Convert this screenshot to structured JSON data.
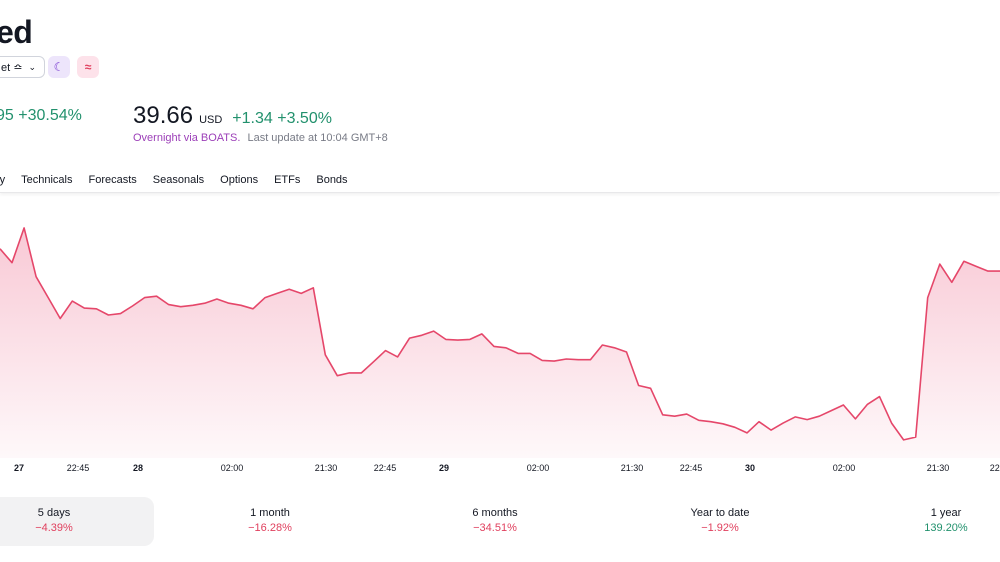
{
  "header": {
    "title": "ed",
    "market_select": "et ≏",
    "main_change": "95 +30.54%"
  },
  "quote": {
    "price": "39.66",
    "currency": "USD",
    "change": "+1.34 +3.50%",
    "session": "Overnight via BOATS.",
    "last_update": "Last update at 10:04 GMT+8"
  },
  "tabs": [
    "nity",
    "Technicals",
    "Forecasts",
    "Seasonals",
    "Options",
    "ETFs",
    "Bonds"
  ],
  "x_axis_labels": [
    {
      "text": "27",
      "bold": true
    },
    {
      "text": "22:45",
      "bold": false
    },
    {
      "text": "28",
      "bold": true
    },
    {
      "text": "02:00",
      "bold": false
    },
    {
      "text": "21:30",
      "bold": false
    },
    {
      "text": "22:45",
      "bold": false
    },
    {
      "text": "29",
      "bold": true
    },
    {
      "text": "02:00",
      "bold": false
    },
    {
      "text": "21:30",
      "bold": false
    },
    {
      "text": "22:45",
      "bold": false
    },
    {
      "text": "30",
      "bold": true
    },
    {
      "text": "02:00",
      "bold": false
    },
    {
      "text": "21:30",
      "bold": false
    },
    {
      "text": "22:",
      "bold": false
    }
  ],
  "chart_data": {
    "type": "area",
    "line_color": "#e5476a",
    "fill_color": "#f8c6d3",
    "x": [
      0,
      1,
      2,
      3,
      4,
      5,
      6,
      7,
      8,
      9,
      10,
      11,
      12,
      13,
      14,
      15,
      16,
      17,
      18,
      19,
      20,
      21,
      22,
      23,
      24,
      25,
      26,
      27,
      28,
      29,
      30,
      31,
      32,
      33,
      34,
      35,
      36,
      37,
      38,
      39,
      40,
      41,
      42,
      43,
      44,
      45,
      46,
      47,
      48,
      49,
      50,
      51,
      52,
      53,
      54,
      55,
      56,
      57,
      58,
      59,
      60,
      61,
      62,
      63,
      64,
      65,
      66,
      67,
      68,
      69,
      70,
      71,
      72,
      73,
      74,
      75,
      76,
      77,
      78,
      79,
      80,
      81,
      82,
      83
    ],
    "values": [
      40.6,
      40.4,
      40.9,
      40.2,
      39.9,
      39.6,
      39.85,
      39.75,
      39.74,
      39.65,
      39.67,
      39.78,
      39.9,
      39.92,
      39.8,
      39.77,
      39.79,
      39.82,
      39.88,
      39.82,
      39.79,
      39.74,
      39.9,
      39.96,
      40.02,
      39.96,
      40.04,
      39.08,
      38.78,
      38.82,
      38.82,
      38.98,
      39.14,
      39.05,
      39.32,
      39.36,
      39.42,
      39.3,
      39.29,
      39.3,
      39.38,
      39.2,
      39.18,
      39.1,
      39.1,
      39.0,
      38.99,
      39.02,
      39.01,
      39.01,
      39.22,
      39.18,
      39.12,
      38.64,
      38.6,
      38.22,
      38.2,
      38.23,
      38.14,
      38.12,
      38.09,
      38.04,
      37.96,
      38.12,
      38.0,
      38.1,
      38.19,
      38.15,
      38.2,
      38.28,
      38.36,
      38.16,
      38.37,
      38.48,
      38.1,
      37.86,
      37.9,
      39.9,
      40.38,
      40.12,
      40.42,
      40.35,
      40.28,
      40.28
    ],
    "y_range": [
      37.6,
      41.4
    ]
  },
  "periods": [
    {
      "label": "5 days",
      "value": "−4.39%",
      "sign": "neg"
    },
    {
      "label": "1 month",
      "value": "−16.28%",
      "sign": "neg"
    },
    {
      "label": "6 months",
      "value": "−34.51%",
      "sign": "neg"
    },
    {
      "label": "Year to date",
      "value": "−1.92%",
      "sign": "neg"
    },
    {
      "label": "1 year",
      "value": "139.20%",
      "sign": "pos"
    }
  ]
}
